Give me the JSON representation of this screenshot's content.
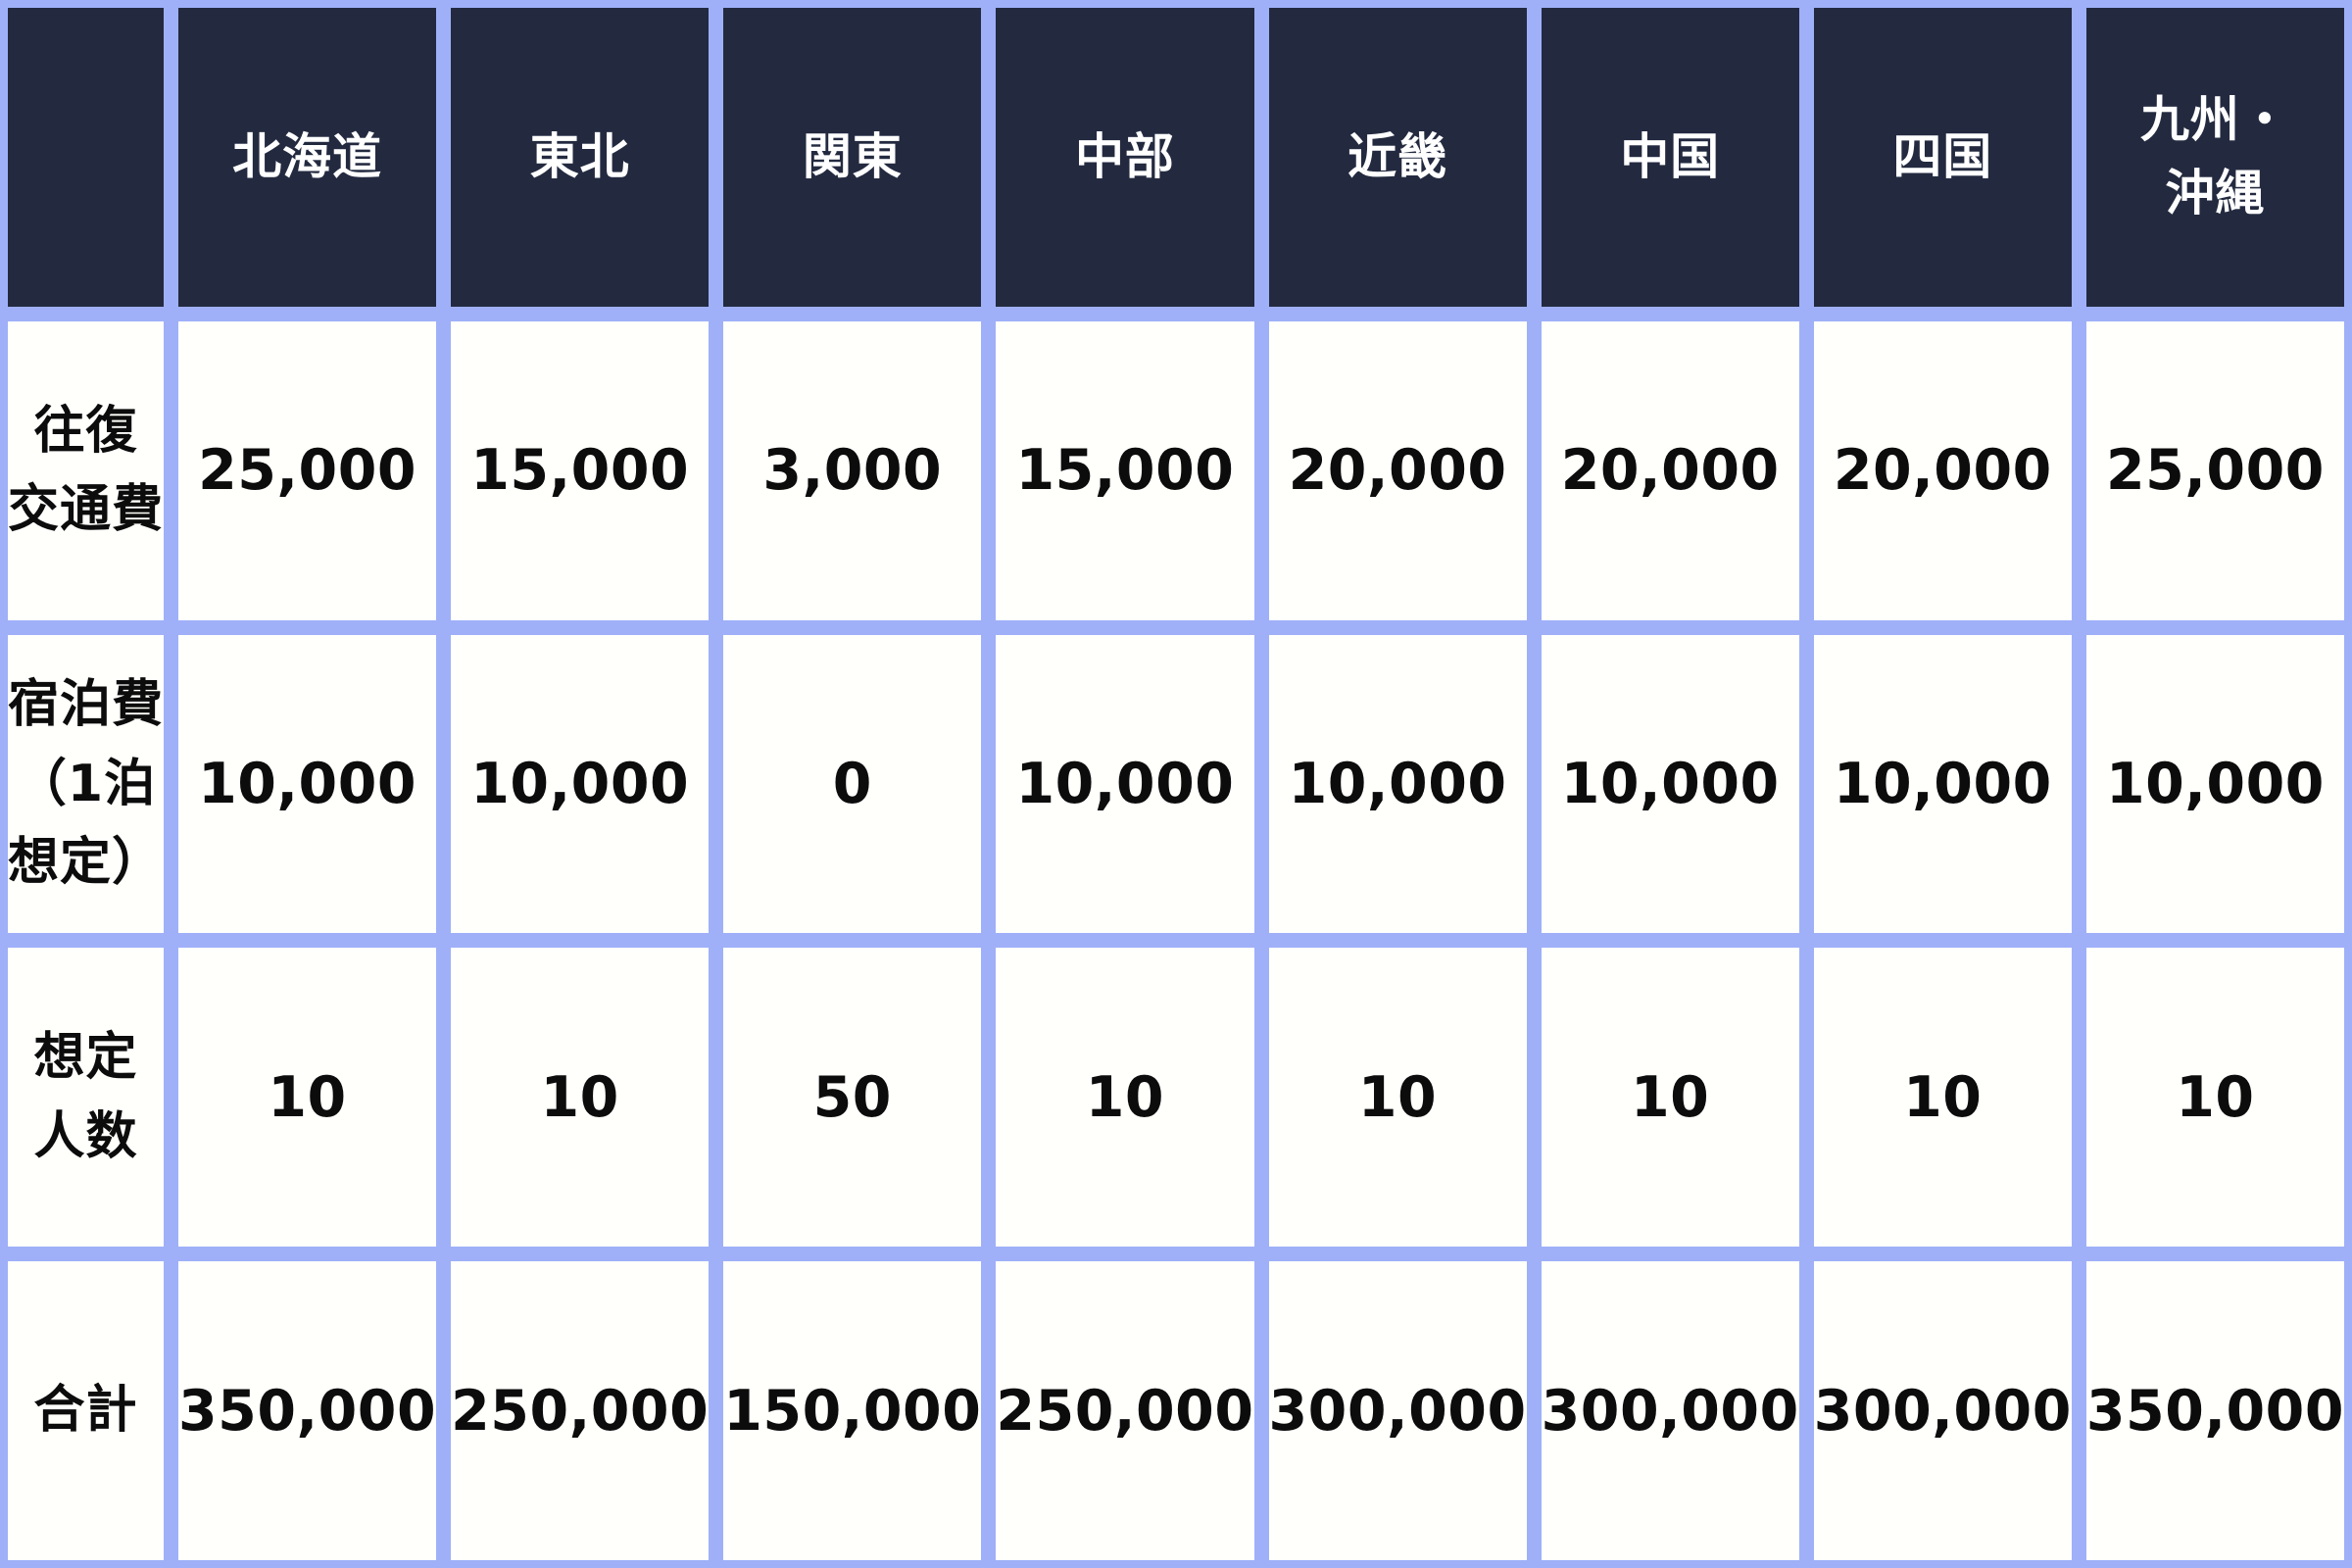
{
  "table": {
    "corner": "",
    "columns": [
      "北海道",
      "東北",
      "関東",
      "中部",
      "近畿",
      "中国",
      "四国",
      "九州・\n沖縄"
    ],
    "rows": [
      {
        "label": "往復\n交通費",
        "values": [
          "25,000",
          "15,000",
          "3,000",
          "15,000",
          "20,000",
          "20,000",
          "20,000",
          "25,000"
        ]
      },
      {
        "label": "宿泊費\n（1泊\n想定）",
        "values": [
          "10,000",
          "10,000",
          "0",
          "10,000",
          "10,000",
          "10,000",
          "10,000",
          "10,000"
        ]
      },
      {
        "label": "想定\n人数",
        "values": [
          "10",
          "10",
          "50",
          "10",
          "10",
          "10",
          "10",
          "10"
        ]
      },
      {
        "label": "合計",
        "values": [
          "350,000",
          "250,000",
          "150,000",
          "250,000",
          "300,000",
          "300,000",
          "300,000",
          "350,000"
        ]
      }
    ]
  },
  "colors": {
    "header_background": "#232a40",
    "header_text": "#ffffff",
    "grid_border": "#9fb0f8",
    "cell_background": "#fffffc",
    "cell_text": "#0c0c0c"
  },
  "chart_data": {
    "type": "table",
    "title": "",
    "categories": [
      "北海道",
      "東北",
      "関東",
      "中部",
      "近畿",
      "中国",
      "四国",
      "九州・沖縄"
    ],
    "series": [
      {
        "name": "往復交通費",
        "values": [
          25000,
          15000,
          3000,
          15000,
          20000,
          20000,
          20000,
          25000
        ]
      },
      {
        "name": "宿泊費（1泊想定）",
        "values": [
          10000,
          10000,
          0,
          10000,
          10000,
          10000,
          10000,
          10000
        ]
      },
      {
        "name": "想定人数",
        "values": [
          10,
          10,
          50,
          10,
          10,
          10,
          10,
          10
        ]
      },
      {
        "name": "合計",
        "values": [
          350000,
          250000,
          150000,
          250000,
          300000,
          300000,
          300000,
          350000
        ]
      }
    ],
    "layout_hints": {
      "header_row": true,
      "header_column": true,
      "grid": true
    }
  }
}
